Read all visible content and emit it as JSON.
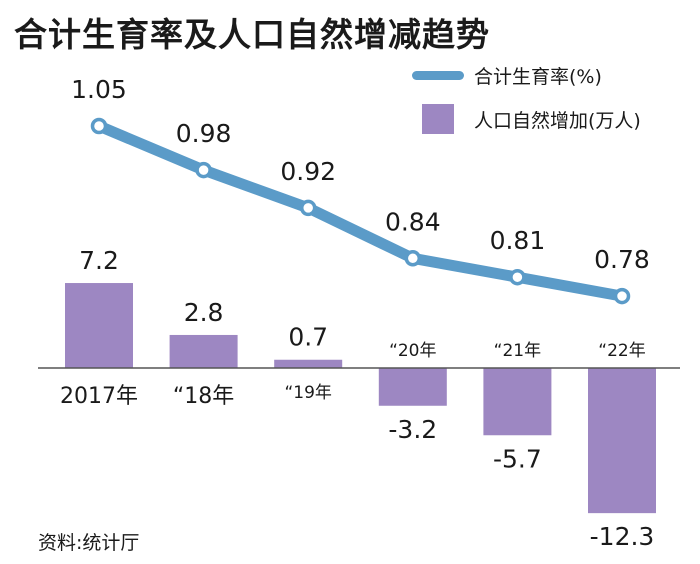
{
  "title": "合计生育率及人口自然增减趋势",
  "source": "资料:统计厅",
  "colors": {
    "line": "#5b9bc8",
    "bar": "#9d87c2",
    "text": "#1a1a1a"
  },
  "chart_data": {
    "type": "bar+line",
    "categories": [
      "2017年",
      "“18年",
      "“19年",
      "“20年",
      "“21年",
      "“22年"
    ],
    "series": [
      {
        "name": "合计生育率(%)",
        "type": "line",
        "values": [
          1.05,
          0.98,
          0.92,
          0.84,
          0.81,
          0.78
        ],
        "labels": [
          "1.05",
          "0.98",
          "0.92",
          "0.84",
          "0.81",
          "0.78"
        ]
      },
      {
        "name": "人口自然增加(万人)",
        "type": "bar",
        "values": [
          7.2,
          2.8,
          0.7,
          -3.2,
          -5.7,
          -12.3
        ],
        "labels": [
          "7.2",
          "2.8",
          "0.7",
          "-3.2",
          "-5.7",
          "-12.3"
        ]
      }
    ],
    "legend": "top-right",
    "grid": false
  }
}
